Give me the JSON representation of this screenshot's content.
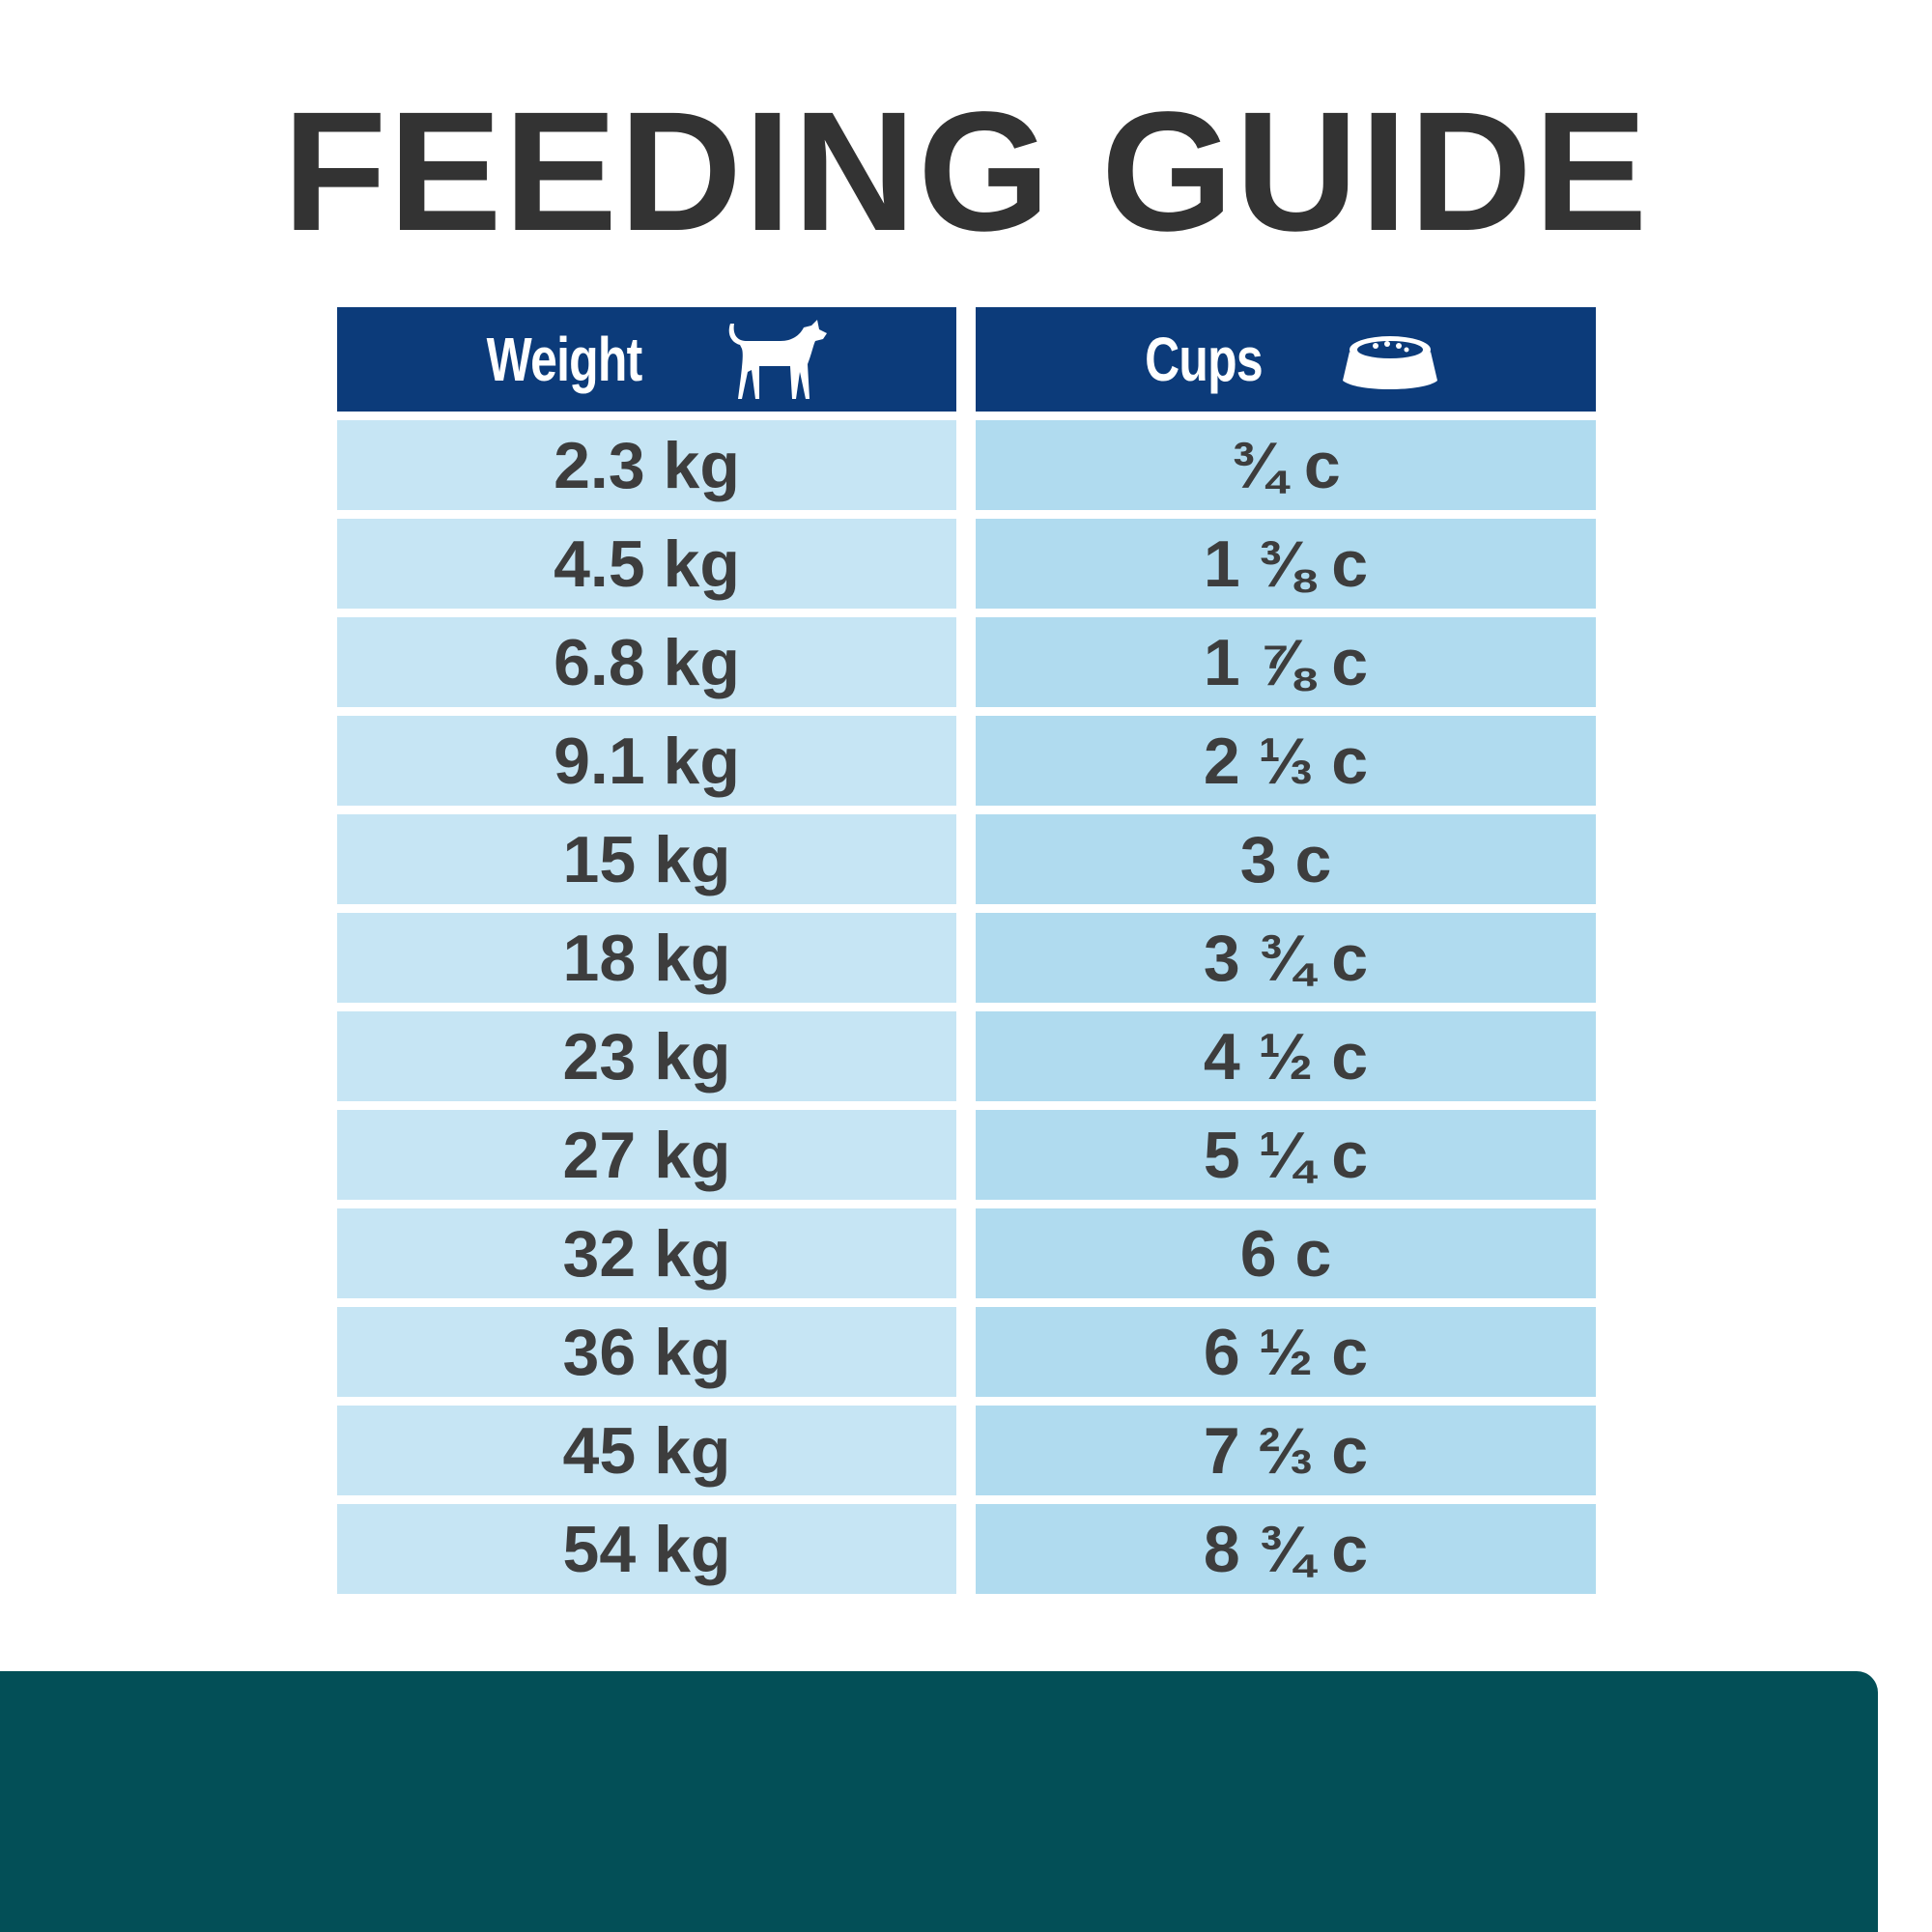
{
  "header": {
    "title": "FEEDING GUIDE"
  },
  "table": {
    "columns": [
      "Weight",
      "Cups"
    ],
    "rows": [
      [
        "2.3 kg",
        "¾ c"
      ],
      [
        "4.5 kg",
        "1 ⅜ c"
      ],
      [
        "6.8 kg",
        "1 ⅞ c"
      ],
      [
        "9.1 kg",
        "2 ⅓ c"
      ],
      [
        "15 kg",
        "3 c"
      ],
      [
        "18 kg",
        "3 ¾ c"
      ],
      [
        "23 kg",
        "4 ½ c"
      ],
      [
        "27 kg",
        "5 ¼ c"
      ],
      [
        "32 kg",
        "6 c"
      ],
      [
        "36 kg",
        "6 ½ c"
      ],
      [
        "45 kg",
        "7 ⅔ c"
      ],
      [
        "54 kg",
        "8 ¾ c"
      ]
    ]
  }
}
